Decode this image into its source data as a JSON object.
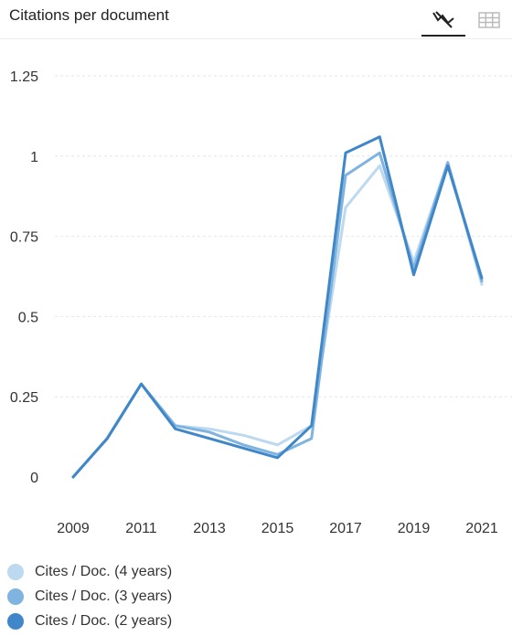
{
  "header": {
    "title": "Citations per document",
    "chart_view_icon": "line-chart-icon",
    "table_view_icon": "table-grid-icon"
  },
  "chart_data": {
    "type": "line",
    "title": "Citations per document",
    "x": [
      2009,
      2010,
      2011,
      2012,
      2013,
      2014,
      2015,
      2016,
      2017,
      2018,
      2019,
      2020,
      2021
    ],
    "xticks": [
      "2009",
      "2011",
      "2013",
      "2015",
      "2017",
      "2019",
      "2021"
    ],
    "yticks": [
      "0",
      "0.25",
      "0.5",
      "0.75",
      "1",
      "1.25"
    ],
    "ylim": [
      0,
      1.25
    ],
    "grid": true,
    "legend_position": "bottom-left",
    "series": [
      {
        "name": "Cites / Doc. (4 years)",
        "color": "#bcd9f0",
        "values": [
          0,
          0.12,
          0.29,
          0.16,
          0.15,
          0.13,
          0.1,
          0.16,
          0.84,
          0.97,
          0.67,
          0.98,
          0.6
        ]
      },
      {
        "name": "Cites / Doc. (3 years)",
        "color": "#7fb3e0",
        "values": [
          0,
          0.12,
          0.29,
          0.16,
          0.14,
          0.1,
          0.07,
          0.12,
          0.94,
          1.01,
          0.65,
          0.98,
          0.61
        ]
      },
      {
        "name": "Cites / Doc. (2 years)",
        "color": "#3f87c8",
        "values": [
          0,
          0.12,
          0.29,
          0.15,
          0.12,
          0.09,
          0.06,
          0.16,
          1.01,
          1.06,
          0.63,
          0.97,
          0.62
        ]
      }
    ]
  }
}
